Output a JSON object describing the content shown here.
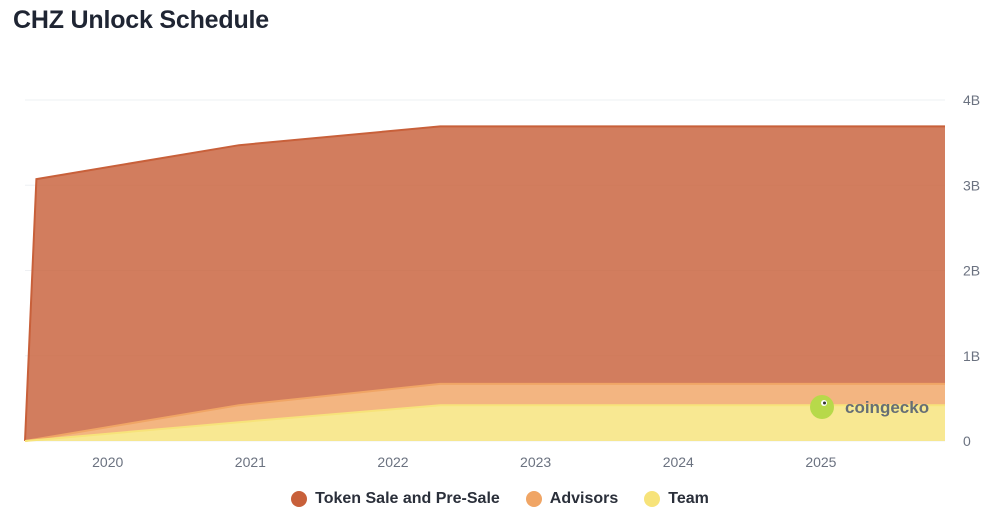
{
  "title": "CHZ Unlock Schedule",
  "watermark": "coingecko",
  "chart_data": {
    "type": "area",
    "stacked": true,
    "title": "CHZ Unlock Schedule",
    "x_unit": "year",
    "xlim": [
      2019.42,
      2025.87
    ],
    "ylim": [
      0,
      4000000000
    ],
    "y_ticks": [
      {
        "value": 0,
        "label": "0"
      },
      {
        "value": 1000000000,
        "label": "1B"
      },
      {
        "value": 2000000000,
        "label": "2B"
      },
      {
        "value": 3000000000,
        "label": "3B"
      },
      {
        "value": 4000000000,
        "label": "4B"
      }
    ],
    "x_ticks": [
      {
        "value": 2020,
        "label": "2020"
      },
      {
        "value": 2021,
        "label": "2021"
      },
      {
        "value": 2022,
        "label": "2022"
      },
      {
        "value": 2023,
        "label": "2023"
      },
      {
        "value": 2024,
        "label": "2024"
      },
      {
        "value": 2025,
        "label": "2025"
      }
    ],
    "y_axis_position": "right",
    "grid": true,
    "legend_position": "bottom-center",
    "series": [
      {
        "name": "Team",
        "color": "#f7e37a",
        "points": [
          [
            2019.42,
            0
          ],
          [
            2020.92,
            220000000
          ],
          [
            2022.33,
            420000000
          ],
          [
            2025.87,
            420000000
          ]
        ]
      },
      {
        "name": "Advisors",
        "color": "#f0a565",
        "points": [
          [
            2019.42,
            0
          ],
          [
            2020.92,
            200000000
          ],
          [
            2022.33,
            250000000
          ],
          [
            2025.87,
            250000000
          ]
        ]
      },
      {
        "name": "Token Sale and Pre-Sale",
        "color": "#c8603a",
        "points": [
          [
            2019.42,
            0
          ],
          [
            2019.5,
            3050000000
          ],
          [
            2020.92,
            3050000000
          ],
          [
            2022.33,
            3020000000
          ],
          [
            2025.87,
            3020000000
          ]
        ]
      }
    ],
    "legend": [
      {
        "name": "Token Sale and Pre-Sale",
        "color": "#c8603a"
      },
      {
        "name": "Advisors",
        "color": "#f0a565"
      },
      {
        "name": "Team",
        "color": "#f7e37a"
      }
    ]
  }
}
